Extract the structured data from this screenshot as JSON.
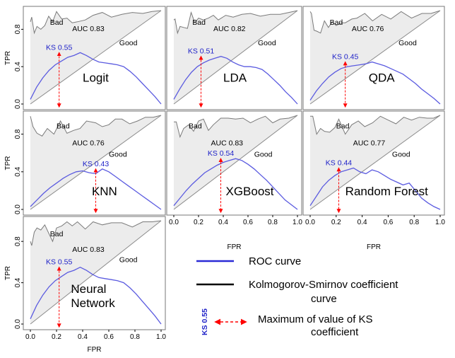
{
  "chart_data": [
    {
      "type": "line",
      "model": "Logit",
      "auc_label": "AUC 0.83",
      "ks_label": "KS 0.55",
      "bad_label": "Bad",
      "good_label": "Good",
      "ks_x": 0.22,
      "ks_y": 0.55,
      "xlim": [
        0,
        1
      ],
      "ylim": [
        0,
        1
      ],
      "xticks": [],
      "yticks": [
        "0.0",
        "0.4",
        "0.8"
      ],
      "xlabel": "",
      "ylabel": "TPR",
      "roc_x": [
        0.0,
        0.01,
        0.03,
        0.05,
        0.08,
        0.11,
        0.14,
        0.17,
        0.2,
        0.24,
        0.28,
        0.32,
        0.36,
        0.42,
        0.48,
        0.55,
        0.62,
        0.7,
        0.78,
        0.86,
        0.93,
        1.0
      ],
      "roc_y": [
        0.88,
        0.93,
        0.76,
        0.83,
        0.8,
        0.84,
        0.94,
        0.88,
        0.99,
        0.91,
        0.92,
        0.87,
        0.88,
        0.9,
        0.95,
        0.98,
        0.93,
        0.96,
        0.98,
        0.97,
        0.99,
        1.0
      ],
      "ks_curve": [
        0.05,
        0.18,
        0.28,
        0.36,
        0.42,
        0.46,
        0.5,
        0.52,
        0.55,
        0.52,
        0.48,
        0.45,
        0.44,
        0.43,
        0.42,
        0.4,
        0.35,
        0.29,
        0.22,
        0.15,
        0.08,
        0.0
      ]
    },
    {
      "type": "line",
      "model": "LDA",
      "auc_label": "AUC 0.82",
      "ks_label": "KS 0.51",
      "bad_label": "Bad",
      "good_label": "Good",
      "ks_x": 0.22,
      "ks_y": 0.51,
      "xlim": [
        0,
        1
      ],
      "ylim": [
        0,
        1
      ],
      "xticks": [],
      "yticks": [],
      "xlabel": "",
      "ylabel": "",
      "roc_x": [
        0.0,
        0.01,
        0.03,
        0.05,
        0.08,
        0.11,
        0.14,
        0.17,
        0.2,
        0.24,
        0.28,
        0.32,
        0.36,
        0.42,
        0.48,
        0.55,
        0.62,
        0.7,
        0.78,
        0.86,
        0.93,
        1.0
      ],
      "roc_y": [
        0.9,
        0.91,
        0.76,
        0.83,
        0.82,
        0.81,
        0.98,
        0.87,
        0.92,
        0.9,
        0.92,
        0.95,
        0.9,
        0.95,
        0.93,
        0.96,
        0.97,
        0.94,
        0.96,
        0.96,
        0.98,
        1.0
      ],
      "ks_curve": [
        0.05,
        0.16,
        0.26,
        0.34,
        0.4,
        0.44,
        0.47,
        0.49,
        0.51,
        0.49,
        0.45,
        0.42,
        0.4,
        0.4,
        0.39,
        0.37,
        0.32,
        0.26,
        0.2,
        0.13,
        0.07,
        0.0
      ]
    },
    {
      "type": "line",
      "model": "QDA",
      "auc_label": "AUC 0.76",
      "ks_label": "KS 0.45",
      "bad_label": "Bad",
      "good_label": "Good",
      "ks_x": 0.27,
      "ks_y": 0.45,
      "xlim": [
        0,
        1
      ],
      "ylim": [
        0,
        1
      ],
      "xticks": [],
      "yticks": [],
      "xlabel": "",
      "ylabel": "",
      "roc_x": [
        0.0,
        0.01,
        0.03,
        0.05,
        0.08,
        0.11,
        0.14,
        0.17,
        0.2,
        0.24,
        0.27,
        0.32,
        0.36,
        0.42,
        0.48,
        0.55,
        0.62,
        0.7,
        0.78,
        0.86,
        0.93,
        1.0
      ],
      "roc_y": [
        0.99,
        0.97,
        0.79,
        0.78,
        0.76,
        0.89,
        0.82,
        0.88,
        0.84,
        0.87,
        0.87,
        0.91,
        0.92,
        0.97,
        0.89,
        0.96,
        0.91,
        0.99,
        0.92,
        0.97,
        0.97,
        1.0
      ],
      "ks_curve": [
        0.04,
        0.14,
        0.22,
        0.29,
        0.34,
        0.38,
        0.4,
        0.41,
        0.42,
        0.43,
        0.45,
        0.43,
        0.41,
        0.38,
        0.35,
        0.32,
        0.27,
        0.22,
        0.16,
        0.11,
        0.06,
        0.0
      ]
    },
    {
      "type": "line",
      "model": "KNN",
      "auc_label": "AUC 0.76",
      "ks_label": "KS 0.43",
      "bad_label": "Bad",
      "good_label": "Good",
      "ks_x": 0.5,
      "ks_y": 0.43,
      "xlim": [
        0,
        1
      ],
      "ylim": [
        0,
        1
      ],
      "xticks": [],
      "yticks": [
        "0.0",
        "0.4",
        "0.8"
      ],
      "xlabel": "",
      "ylabel": "TPR",
      "roc_x": [
        0.0,
        0.02,
        0.05,
        0.09,
        0.13,
        0.18,
        0.23,
        0.28,
        0.33,
        0.38,
        0.43,
        0.5,
        0.55,
        0.6,
        0.65,
        0.7,
        0.76,
        0.82,
        0.88,
        0.94,
        1.0
      ],
      "roc_y": [
        0.99,
        0.88,
        0.81,
        0.78,
        0.86,
        0.8,
        0.94,
        0.81,
        0.84,
        0.86,
        0.94,
        0.92,
        0.88,
        0.9,
        0.96,
        0.96,
        0.91,
        0.94,
        0.98,
        0.98,
        1.0
      ],
      "ks_curve": [
        0.03,
        0.1,
        0.17,
        0.23,
        0.28,
        0.33,
        0.37,
        0.4,
        0.41,
        0.39,
        0.38,
        0.43,
        0.4,
        0.35,
        0.3,
        0.25,
        0.2,
        0.15,
        0.1,
        0.05,
        0.0
      ]
    },
    {
      "type": "line",
      "model": "XGBoost",
      "auc_label": "AUC 0.83",
      "ks_label": "KS 0.54",
      "bad_label": "Bad",
      "good_label": "Good",
      "ks_x": 0.38,
      "ks_y": 0.54,
      "xlim": [
        0,
        1
      ],
      "ylim": [
        0,
        1
      ],
      "xticks": [
        "0.0",
        "0.2",
        "0.4",
        "0.6",
        "0.8",
        "1.0"
      ],
      "yticks": [],
      "xlabel": "FPR",
      "ylabel": "",
      "roc_x": [
        0.0,
        0.02,
        0.05,
        0.08,
        0.12,
        0.16,
        0.2,
        0.24,
        0.28,
        0.32,
        0.38,
        0.44,
        0.5,
        0.56,
        0.62,
        0.68,
        0.74,
        0.8,
        0.86,
        0.93,
        1.0
      ],
      "roc_y": [
        0.93,
        0.93,
        0.77,
        0.86,
        0.9,
        0.83,
        0.94,
        0.96,
        0.84,
        0.9,
        0.97,
        0.97,
        0.96,
        0.97,
        0.92,
        0.96,
        0.99,
        0.92,
        0.96,
        0.97,
        1.0
      ],
      "ks_curve": [
        0.04,
        0.12,
        0.2,
        0.27,
        0.33,
        0.39,
        0.43,
        0.47,
        0.5,
        0.52,
        0.54,
        0.52,
        0.48,
        0.43,
        0.37,
        0.31,
        0.24,
        0.17,
        0.1,
        0.05,
        0.0
      ]
    },
    {
      "type": "line",
      "model": "Random Forest",
      "auc_label": "AUC 0.77",
      "ks_label": "KS 0.44",
      "bad_label": "Bad",
      "good_label": "Good",
      "ks_x": 0.22,
      "ks_y": 0.44,
      "xlim": [
        0,
        1
      ],
      "ylim": [
        0,
        1
      ],
      "xticks": [
        "0.0",
        "0.2",
        "0.4",
        "0.6",
        "0.8",
        "1.0"
      ],
      "yticks": [],
      "xlabel": "FPR",
      "ylabel": "",
      "roc_x": [
        0.0,
        0.02,
        0.05,
        0.08,
        0.11,
        0.15,
        0.19,
        0.22,
        0.27,
        0.32,
        0.37,
        0.42,
        0.48,
        0.54,
        0.6,
        0.66,
        0.72,
        0.78,
        0.84,
        0.9,
        0.95,
        1.0
      ],
      "roc_y": [
        0.99,
        0.99,
        0.8,
        0.86,
        0.83,
        0.82,
        0.87,
        0.96,
        0.8,
        0.9,
        0.94,
        0.88,
        0.92,
        0.99,
        0.95,
        0.91,
        0.98,
        0.95,
        0.98,
        0.97,
        0.97,
        1.0
      ],
      "ks_curve": [
        0.04,
        0.14,
        0.24,
        0.31,
        0.36,
        0.4,
        0.42,
        0.44,
        0.4,
        0.38,
        0.42,
        0.4,
        0.36,
        0.32,
        0.29,
        0.26,
        0.28,
        0.2,
        0.12,
        0.07,
        0.03,
        0.0
      ]
    },
    {
      "type": "line",
      "model": "Neural\nNetwork",
      "auc_label": "AUC 0.83",
      "ks_label": "KS 0.55",
      "bad_label": "Bad",
      "good_label": "Good",
      "ks_x": 0.22,
      "ks_y": 0.55,
      "xlim": [
        0,
        1
      ],
      "ylim": [
        0,
        1
      ],
      "xticks": [
        "0.0",
        "0.2",
        "0.4",
        "0.6",
        "0.8",
        "1.0"
      ],
      "yticks": [
        "0.0",
        "0.4",
        "0.8"
      ],
      "xlabel": "FPR",
      "ylabel": "TPR",
      "roc_x": [
        0.0,
        0.01,
        0.03,
        0.05,
        0.08,
        0.11,
        0.14,
        0.17,
        0.2,
        0.24,
        0.28,
        0.32,
        0.36,
        0.42,
        0.48,
        0.55,
        0.62,
        0.7,
        0.78,
        0.86,
        0.93,
        1.0
      ],
      "roc_y": [
        0.8,
        0.76,
        0.89,
        0.93,
        0.91,
        0.96,
        0.88,
        0.8,
        0.93,
        0.95,
        0.99,
        0.95,
        0.99,
        0.92,
        0.99,
        0.96,
        0.98,
        0.98,
        0.94,
        0.99,
        0.99,
        1.0
      ],
      "ks_curve": [
        0.05,
        0.18,
        0.28,
        0.36,
        0.42,
        0.46,
        0.5,
        0.52,
        0.55,
        0.52,
        0.48,
        0.45,
        0.44,
        0.43,
        0.42,
        0.4,
        0.35,
        0.29,
        0.22,
        0.15,
        0.08,
        0.0
      ]
    }
  ],
  "legend": {
    "roc_label": "ROC curve",
    "roc_color": "#2a2ad6",
    "ks_line_1": "Kolmogorov-Smirnov coefficient",
    "ks_line_2": "curve",
    "ks_color": "#000000",
    "marker_vertical_label": "KS 0.55",
    "max_line_1": "Maximum of value of KS",
    "max_line_2": "coefficient",
    "marker_color": "#ff0000"
  },
  "colors": {
    "ks_curve": "#5b5be0",
    "roc_curve": "#7a7a7a",
    "fill": "#ececec",
    "ks_text": "#1f22c8",
    "arrow": "#ff0000"
  }
}
